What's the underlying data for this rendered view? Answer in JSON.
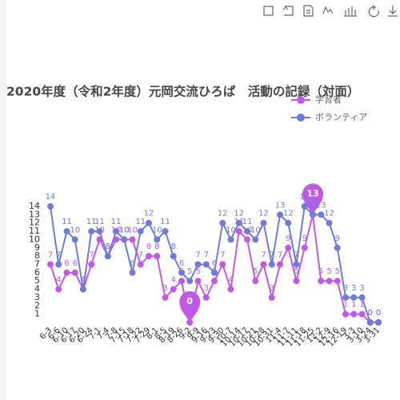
{
  "chart_data": {
    "type": "line",
    "title": "2020年度（令和2年度）元岡交流ひろば　活動の記録（対面）",
    "categories": [
      "6-3",
      "6-6",
      "6-10",
      "6-17",
      "6-20",
      "6-24",
      "7-1",
      "7-4",
      "7-8",
      "7-15",
      "7-18",
      "7-22",
      "7-29",
      "8-1",
      "8-5",
      "8-19",
      "8-26",
      "9-2",
      "9-9",
      "9-16",
      "9-23",
      "9-30",
      "10-7",
      "10-14",
      "10-17",
      "10-21",
      "10-28",
      "10-31",
      "11-4",
      "11-7",
      "11-11",
      "11-18",
      "11-25",
      "12-2",
      "12-9",
      "12-16",
      "12-19",
      "3-3",
      "3-10",
      "3-24",
      "3-31"
    ],
    "series": [
      {
        "name": "学習者",
        "color": "#c05ae6",
        "values": [
          7,
          4,
          6,
          6,
          4,
          7,
          10,
          8,
          10,
          10,
          10,
          7,
          8,
          8,
          3,
          4,
          5,
          0,
          5,
          3,
          5,
          7,
          4,
          11,
          10,
          5,
          7,
          3,
          7,
          9,
          5,
          9,
          13,
          5,
          5,
          5,
          1,
          1,
          1,
          0,
          0
        ]
      },
      {
        "name": "ボランティア",
        "color": "#6e7bd9",
        "values": [
          14,
          7,
          11,
          10,
          4,
          11,
          11,
          8,
          11,
          10,
          6,
          11,
          12,
          10,
          11,
          8,
          6,
          5,
          7,
          7,
          6,
          12,
          10,
          12,
          11,
          10,
          12,
          7,
          13,
          12,
          7,
          14,
          13,
          13,
          12,
          9,
          3,
          3,
          3,
          0,
          0
        ]
      }
    ],
    "ylim": [
      0,
      14
    ],
    "yticks": [
      1,
      2,
      3,
      4,
      5,
      6,
      7,
      8,
      9,
      10,
      11,
      12,
      13,
      14
    ],
    "legend": "top-right"
  }
}
